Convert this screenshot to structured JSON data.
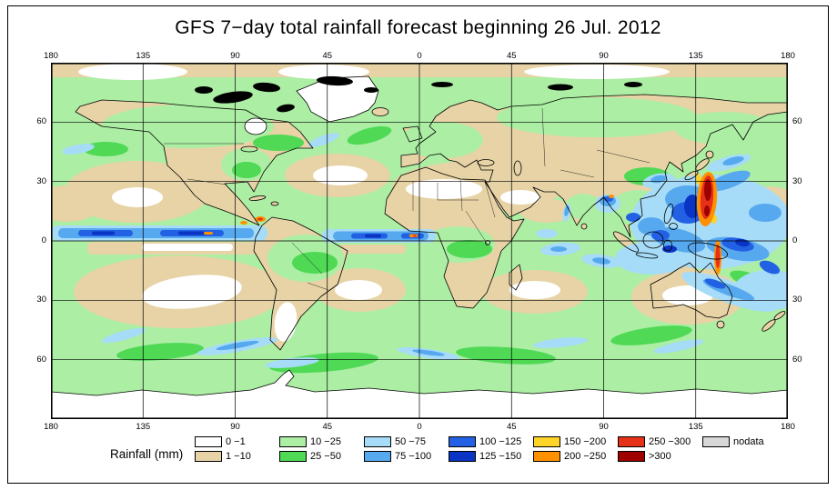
{
  "title": "GFS 7−day total rainfall forecast beginning 26 Jul. 2012",
  "map": {
    "lon_ticks": [
      "180",
      "135",
      "90",
      "45",
      "0",
      "45",
      "90",
      "135",
      "180"
    ],
    "lat_ticks": [
      "60",
      "30",
      "0",
      "30",
      "60"
    ]
  },
  "legend": {
    "label": "Rainfall (mm)",
    "items": [
      {
        "label": "0 −1",
        "color": "#ffffff"
      },
      {
        "label": "1 −10",
        "color": "#e7d3a6"
      },
      {
        "label": "10 −25",
        "color": "#aceea4"
      },
      {
        "label": "25 −50",
        "color": "#4fd955"
      },
      {
        "label": "50 −75",
        "color": "#a6dcf8"
      },
      {
        "label": "75 −100",
        "color": "#57a9ef"
      },
      {
        "label": "100 −125",
        "color": "#2261e4"
      },
      {
        "label": "125 −150",
        "color": "#0a34c4"
      },
      {
        "label": "150 −200",
        "color": "#ffd428"
      },
      {
        "label": "200 −250",
        "color": "#ff9100"
      },
      {
        "label": "250 −300",
        "color": "#e53118"
      },
      {
        "label": ">300",
        "color": "#9e0000"
      },
      {
        "label": "nodata",
        "color": "#d8d8d8"
      }
    ]
  }
}
